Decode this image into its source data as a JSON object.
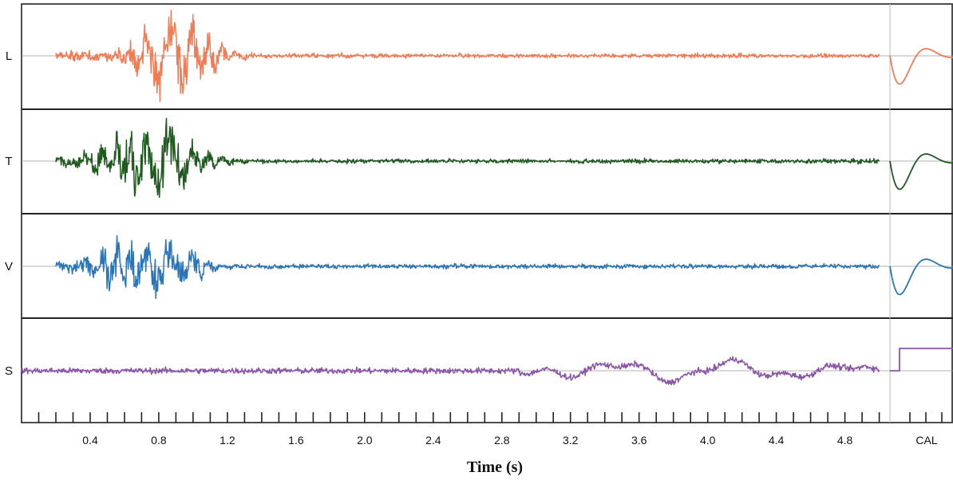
{
  "chart_data": {
    "type": "line",
    "xlabel": "Time (s)",
    "xlim": [
      0,
      5.43
    ],
    "x_ticks": [
      "0.4",
      "0.8",
      "1.2",
      "1.6",
      "2.0",
      "2.4",
      "2.8",
      "3.2",
      "3.6",
      "4.0",
      "4.4",
      "4.8"
    ],
    "cal_label": "CAL",
    "cal_start": 5.0,
    "grid": false,
    "series": [
      {
        "name": "L",
        "color": "#f07c56",
        "shape": "quake",
        "peak_time": 0.9,
        "spread": 0.24,
        "amplitude": 0.85,
        "start": 0.2
      },
      {
        "name": "T",
        "color": "#1f5a1f",
        "shape": "quake",
        "peak_time": 0.75,
        "spread": 0.3,
        "amplitude": 0.75,
        "start": 0.2
      },
      {
        "name": "V",
        "color": "#2a74b8",
        "shape": "quake",
        "peak_time": 0.72,
        "spread": 0.3,
        "amplitude": 0.62,
        "start": 0.2
      },
      {
        "name": "S",
        "color": "#8a55a8",
        "shape": "noise_late",
        "start": 0.0,
        "late_start": 2.9,
        "late_end": 4.9
      }
    ]
  }
}
